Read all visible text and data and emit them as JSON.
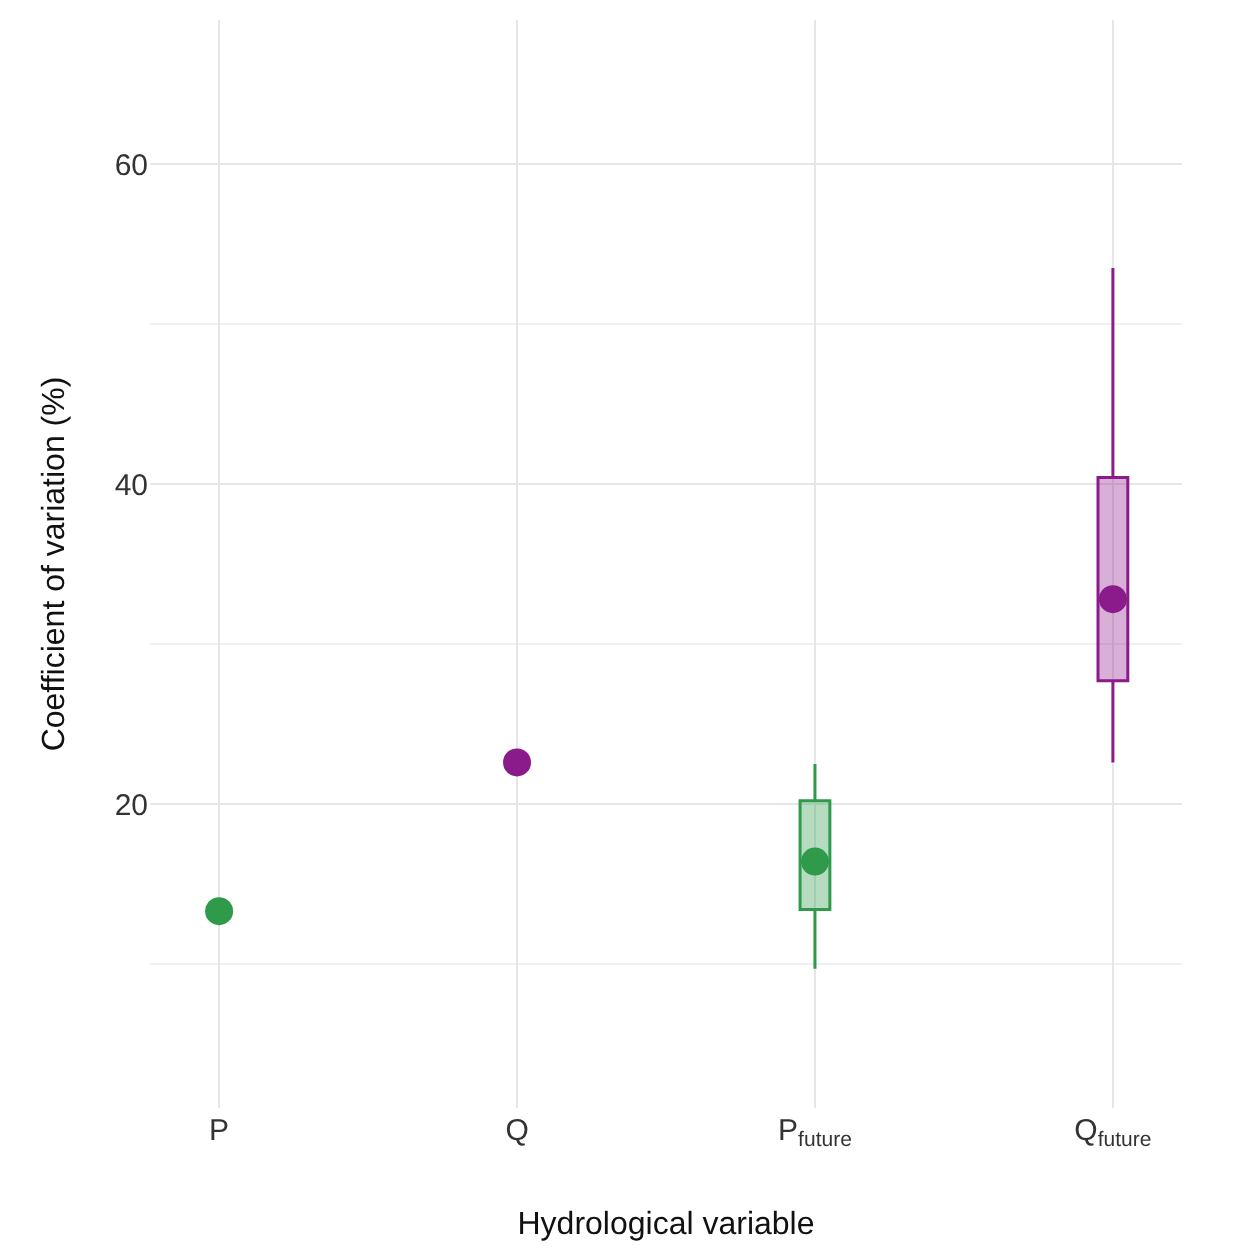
{
  "chart_data": {
    "type": "box",
    "xlabel": "Hydrological variable",
    "ylabel": "Coefficient of variation (%)",
    "categories": [
      "P",
      "Q",
      "P$_{future}$",
      "Q$_{future}$"
    ],
    "ylim": [
      1,
      69
    ],
    "yticks": [
      20,
      40,
      60
    ],
    "grid": true,
    "marker": "circle",
    "series": [
      {
        "type": "scatter",
        "x": [
          "P",
          "Q"
        ],
        "values": [
          13.3,
          22.6
        ],
        "colors": [
          "#2e9a4a",
          "#8b1a8b"
        ]
      },
      {
        "colors": [
          null,
          null,
          "#2e9a4a",
          "#8b1a8b"
        ],
        "boxes": [
          null,
          null,
          {
            "low": 9.7,
            "q1": 13.4,
            "median": 16.4,
            "q3": 20.2,
            "high": 22.5
          },
          {
            "low": 22.6,
            "q1": 27.7,
            "median": 32.8,
            "q3": 40.4,
            "high": 53.5
          }
        ]
      }
    ]
  }
}
